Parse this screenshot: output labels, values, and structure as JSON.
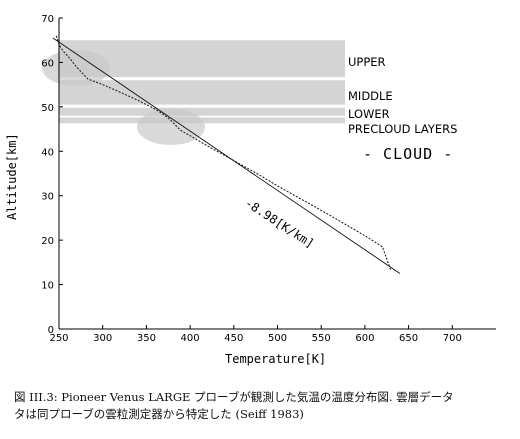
{
  "chart_data": {
    "type": "line",
    "xlabel": "Temperature[K]",
    "ylabel": "Altitude[km]",
    "xlim": [
      250,
      750
    ],
    "ylim": [
      0,
      70
    ],
    "xticks": [
      250,
      300,
      350,
      400,
      450,
      500,
      550,
      600,
      650,
      700
    ],
    "yticks": [
      0,
      10,
      20,
      30,
      40,
      50,
      60,
      70
    ],
    "grid": false,
    "layers": [
      {
        "label": "UPPER",
        "bottom": 56.7,
        "top": 65
      },
      {
        "label": "MIDDLE",
        "bottom": 50.5,
        "top": 56
      },
      {
        "label": "LOWER",
        "bottom": 48,
        "top": 49.8
      },
      {
        "label": "PRECLOUD LAYERS",
        "bottom": 46.3,
        "top": 47.6
      }
    ],
    "cloud_label": "- CLOUD -",
    "lapse_rate_label": "-8.98[K/km]",
    "series": [
      {
        "style": "measured",
        "x": [
          247,
          250,
          255,
          262,
          270,
          283,
          300,
          320,
          340,
          350,
          360,
          368,
          375,
          380,
          385,
          390,
          400,
          420,
          440,
          460,
          480,
          500,
          520,
          540,
          560,
          580,
          600,
          620,
          630
        ],
        "y": [
          66,
          64,
          62.5,
          61,
          59,
          56.3,
          55,
          53.3,
          51.5,
          50.5,
          49.5,
          48.5,
          47.5,
          46.6,
          45.5,
          44.6,
          43.5,
          41.2,
          39,
          36.8,
          34.6,
          32.2,
          30,
          27.8,
          25.6,
          23.3,
          21,
          18.5,
          13
        ]
      },
      {
        "style": "adiabat",
        "x": [
          243,
          640
        ],
        "y": [
          65.5,
          12.5
        ]
      }
    ]
  },
  "caption": {
    "line1": "図 III.3: Pioneer Venus LARGE プローブが観測した気温の温度分布図. 雲層データ",
    "line2": "タは同プローブの雲粒測定器から特定した (Seiff 1983)"
  }
}
